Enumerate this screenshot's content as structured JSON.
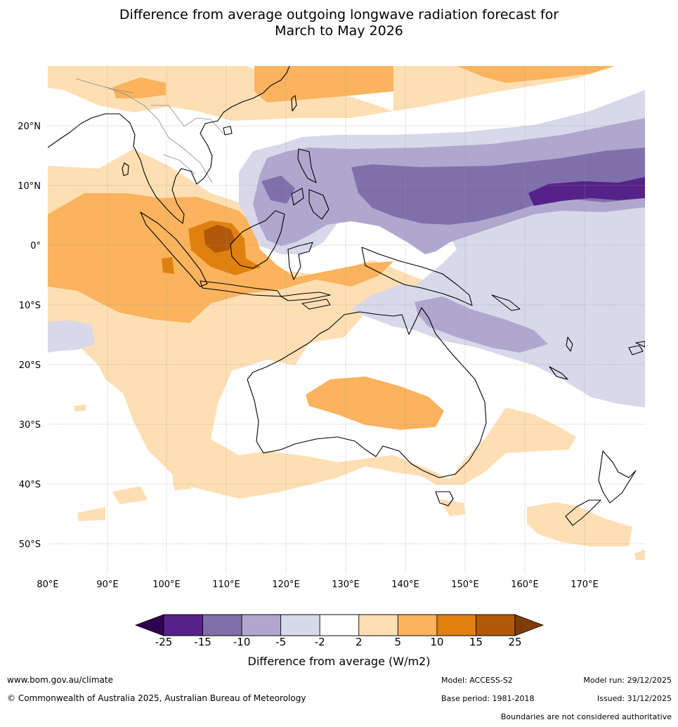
{
  "title": {
    "line1": "Difference from average outgoing longwave radiation forecast for",
    "line2": "March to May 2026"
  },
  "map": {
    "lat_labels": [
      "20°N",
      "10°N",
      "0°",
      "10°S",
      "20°S",
      "30°S",
      "40°S",
      "50°S"
    ],
    "lon_labels": [
      "80°E",
      "90°E",
      "100°E",
      "110°E",
      "120°E",
      "130°E",
      "140°E",
      "150°E",
      "160°E",
      "170°E"
    ],
    "lat_range": [
      -55,
      30
    ],
    "lon_range": [
      80,
      180
    ]
  },
  "colorbar": {
    "ticks": [
      "-25",
      "-15",
      "-10",
      "-5",
      "-2",
      "2",
      "5",
      "10",
      "15",
      "25"
    ],
    "colors": [
      "#552289",
      "#7f70ab",
      "#b0a7cf",
      "#d8d8ea",
      "#ffffff",
      "#fedfb4",
      "#fbb35d",
      "#e0800f",
      "#b15809"
    ],
    "under_color": "#2e004f",
    "over_color": "#7f3b08",
    "label": "Difference from average (W/m2)"
  },
  "footer": {
    "url": "www.bom.gov.au/climate",
    "copyright": "© Commonwealth of Australia 2025, Australian Bureau of Meteorology",
    "model": "Model: ACCESS-S2",
    "base_period": "Base period: 1981-2018",
    "model_run": "Model run: 29/12/2025",
    "issued": "Issued: 31/12/2025",
    "disclaimer": "Boundaries are not considered authoritative"
  }
}
